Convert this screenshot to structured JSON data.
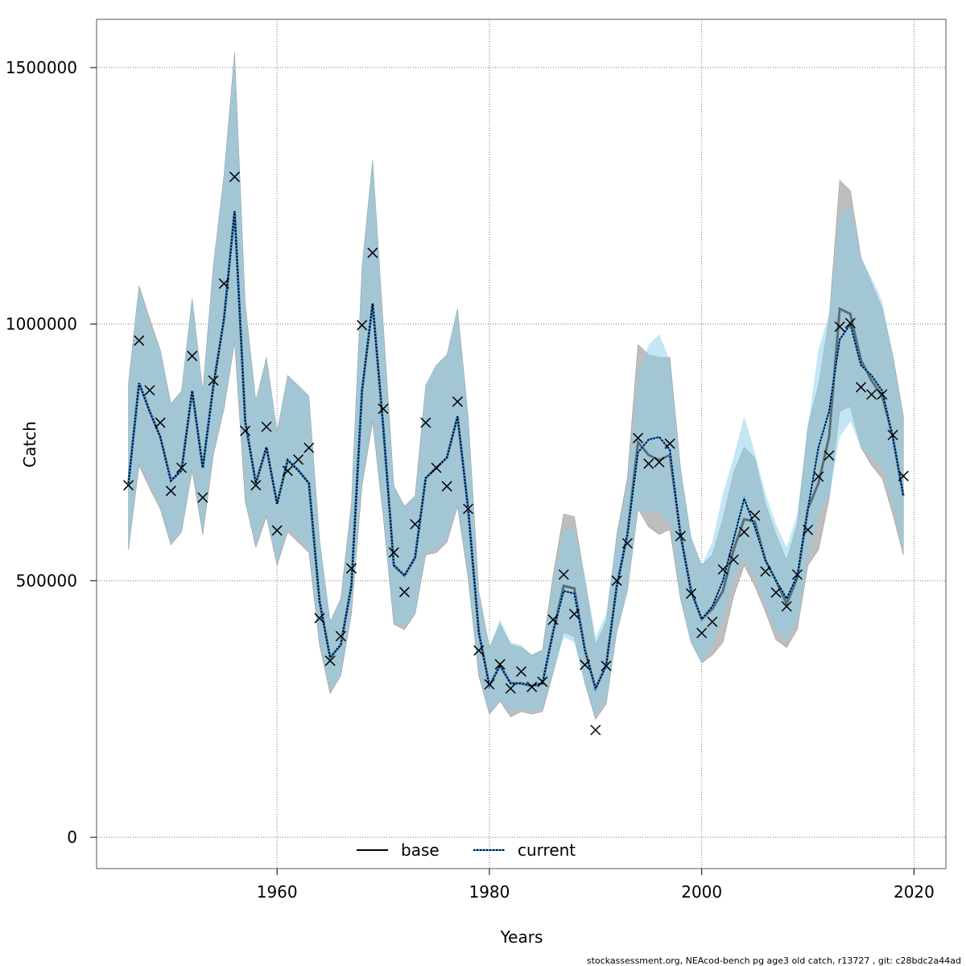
{
  "chart_data": {
    "type": "line",
    "xlabel": "Years",
    "ylabel": "Catch",
    "xlim": [
      1943,
      2023
    ],
    "ylim": [
      -61000,
      1594000
    ],
    "grid": true,
    "x_ticks": [
      "1960",
      "1980",
      "2000",
      "2020"
    ],
    "x_tick_values": [
      1960,
      1980,
      2000,
      2020
    ],
    "y_ticks": [
      "0",
      "500000",
      "1000000",
      "1500000"
    ],
    "y_tick_values": [
      0,
      500000,
      1000000,
      1500000
    ],
    "legend": {
      "placement": "bottom-center",
      "entries": [
        "base",
        "current"
      ]
    },
    "value_scale": 1000,
    "years": [
      1946,
      1947,
      1948,
      1949,
      1950,
      1951,
      1952,
      1953,
      1954,
      1955,
      1956,
      1957,
      1958,
      1959,
      1960,
      1961,
      1962,
      1963,
      1964,
      1965,
      1966,
      1967,
      1968,
      1969,
      1970,
      1971,
      1972,
      1973,
      1974,
      1975,
      1976,
      1977,
      1978,
      1979,
      1980,
      1981,
      1982,
      1983,
      1984,
      1985,
      1986,
      1987,
      1988,
      1989,
      1990,
      1991,
      1992,
      1993,
      1994,
      1995,
      1996,
      1997,
      1998,
      1999,
      2000,
      2001,
      2002,
      2003,
      2004,
      2005,
      2006,
      2007,
      2008,
      2009,
      2010,
      2011,
      2012,
      2013,
      2014,
      2015,
      2016,
      2017,
      2018,
      2019
    ],
    "observed": [
      686,
      968,
      871,
      808,
      675,
      720,
      938,
      662,
      890,
      1079,
      1287,
      792,
      686,
      800,
      598,
      714,
      736,
      759,
      427,
      344,
      392,
      524,
      998,
      1139,
      835,
      555,
      478,
      610,
      808,
      720,
      684,
      849,
      640,
      364,
      298,
      337,
      290,
      323,
      293,
      303,
      424,
      512,
      435,
      336,
      209,
      334,
      500,
      573,
      778,
      728,
      731,
      767,
      587,
      475,
      398,
      420,
      522,
      541,
      595,
      627,
      518,
      477,
      450,
      512,
      599,
      703,
      744,
      995,
      1002,
      877,
      863,
      863,
      784,
      704
    ],
    "series": [
      {
        "name": "base",
        "estimate": [
          690,
          885,
          830,
          780,
          695,
          715,
          870,
          720,
          880,
          1010,
          1220,
          810,
          690,
          760,
          650,
          735,
          715,
          690,
          460,
          350,
          375,
          490,
          870,
          1040,
          800,
          530,
          510,
          545,
          700,
          720,
          740,
          820,
          640,
          400,
          295,
          335,
          300,
          300,
          295,
          300,
          400,
          490,
          485,
          365,
          290,
          335,
          490,
          590,
          770,
          745,
          735,
          745,
          590,
          480,
          425,
          445,
          480,
          560,
          620,
          615,
          540,
          500,
          455,
          505,
          640,
          690,
          780,
          1030,
          1020,
          930,
          890,
          860,
          780,
          665
        ],
        "upper": [
          885,
          1075,
          1010,
          950,
          845,
          870,
          1050,
          870,
          1115,
          1290,
          1530,
          1040,
          850,
          935,
          790,
          900,
          880,
          860,
          580,
          420,
          465,
          650,
          1110,
          1320,
          1000,
          685,
          645,
          665,
          880,
          920,
          940,
          1030,
          820,
          480,
          370,
          415,
          375,
          370,
          355,
          365,
          510,
          630,
          625,
          500,
          375,
          420,
          590,
          700,
          960,
          940,
          935,
          935,
          720,
          580,
          530,
          550,
          620,
          710,
          760,
          740,
          650,
          590,
          540,
          610,
          800,
          880,
          1010,
          1280,
          1260,
          1130,
          1080,
          1030,
          940,
          820
        ],
        "lower": [
          560,
          725,
          680,
          640,
          570,
          595,
          715,
          590,
          745,
          835,
          965,
          655,
          565,
          625,
          530,
          595,
          575,
          555,
          375,
          280,
          315,
          435,
          685,
          810,
          625,
          415,
          405,
          435,
          550,
          555,
          575,
          645,
          505,
          315,
          240,
          265,
          235,
          245,
          240,
          245,
          320,
          400,
          390,
          300,
          230,
          260,
          400,
          480,
          640,
          605,
          590,
          600,
          465,
          380,
          340,
          355,
          380,
          470,
          530,
          490,
          440,
          385,
          370,
          405,
          530,
          560,
          660,
          830,
          840,
          760,
          725,
          700,
          630,
          550
        ]
      },
      {
        "name": "current",
        "estimate": [
          690,
          885,
          830,
          780,
          695,
          715,
          870,
          720,
          880,
          1010,
          1220,
          810,
          690,
          760,
          650,
          735,
          715,
          690,
          460,
          350,
          375,
          490,
          870,
          1040,
          800,
          530,
          510,
          545,
          700,
          720,
          740,
          820,
          640,
          400,
          295,
          335,
          300,
          300,
          295,
          300,
          400,
          480,
          475,
          365,
          290,
          335,
          490,
          590,
          750,
          775,
          780,
          755,
          590,
          480,
          425,
          450,
          500,
          580,
          660,
          605,
          540,
          500,
          465,
          510,
          640,
          760,
          830,
          970,
          1000,
          920,
          900,
          870,
          780,
          665
        ],
        "upper": [
          885,
          1075,
          1000,
          950,
          845,
          870,
          1050,
          870,
          1115,
          1290,
          1530,
          1040,
          850,
          935,
          790,
          900,
          880,
          860,
          580,
          420,
          465,
          650,
          1110,
          1320,
          1000,
          685,
          645,
          665,
          880,
          920,
          940,
          1030,
          820,
          480,
          370,
          425,
          380,
          375,
          355,
          365,
          500,
          600,
          600,
          510,
          390,
          435,
          590,
          690,
          900,
          960,
          980,
          930,
          720,
          590,
          530,
          575,
          670,
          740,
          820,
          750,
          670,
          610,
          565,
          630,
          800,
          950,
          1020,
          1210,
          1230,
          1130,
          1090,
          1045,
          940,
          820
        ],
        "lower": [
          560,
          730,
          690,
          645,
          575,
          600,
          720,
          595,
          750,
          840,
          970,
          660,
          570,
          630,
          535,
          600,
          580,
          560,
          380,
          285,
          320,
          440,
          690,
          815,
          630,
          420,
          410,
          440,
          555,
          560,
          580,
          650,
          510,
          320,
          240,
          270,
          245,
          250,
          245,
          250,
          320,
          390,
          380,
          300,
          235,
          265,
          400,
          480,
          640,
          630,
          635,
          610,
          470,
          380,
          340,
          375,
          420,
          500,
          540,
          510,
          450,
          400,
          385,
          420,
          540,
          630,
          660,
          780,
          810,
          760,
          740,
          720,
          650,
          550
        ]
      }
    ]
  },
  "footer": "stockassessment.org, NEAcod-bench pg age3 old catch, r13727 , git: c28bdc2a44ad",
  "colors": {
    "base_band": "#bebebe",
    "current_band": "#87ceeb",
    "current_line": "#1e90ff",
    "points": "#000000"
  }
}
